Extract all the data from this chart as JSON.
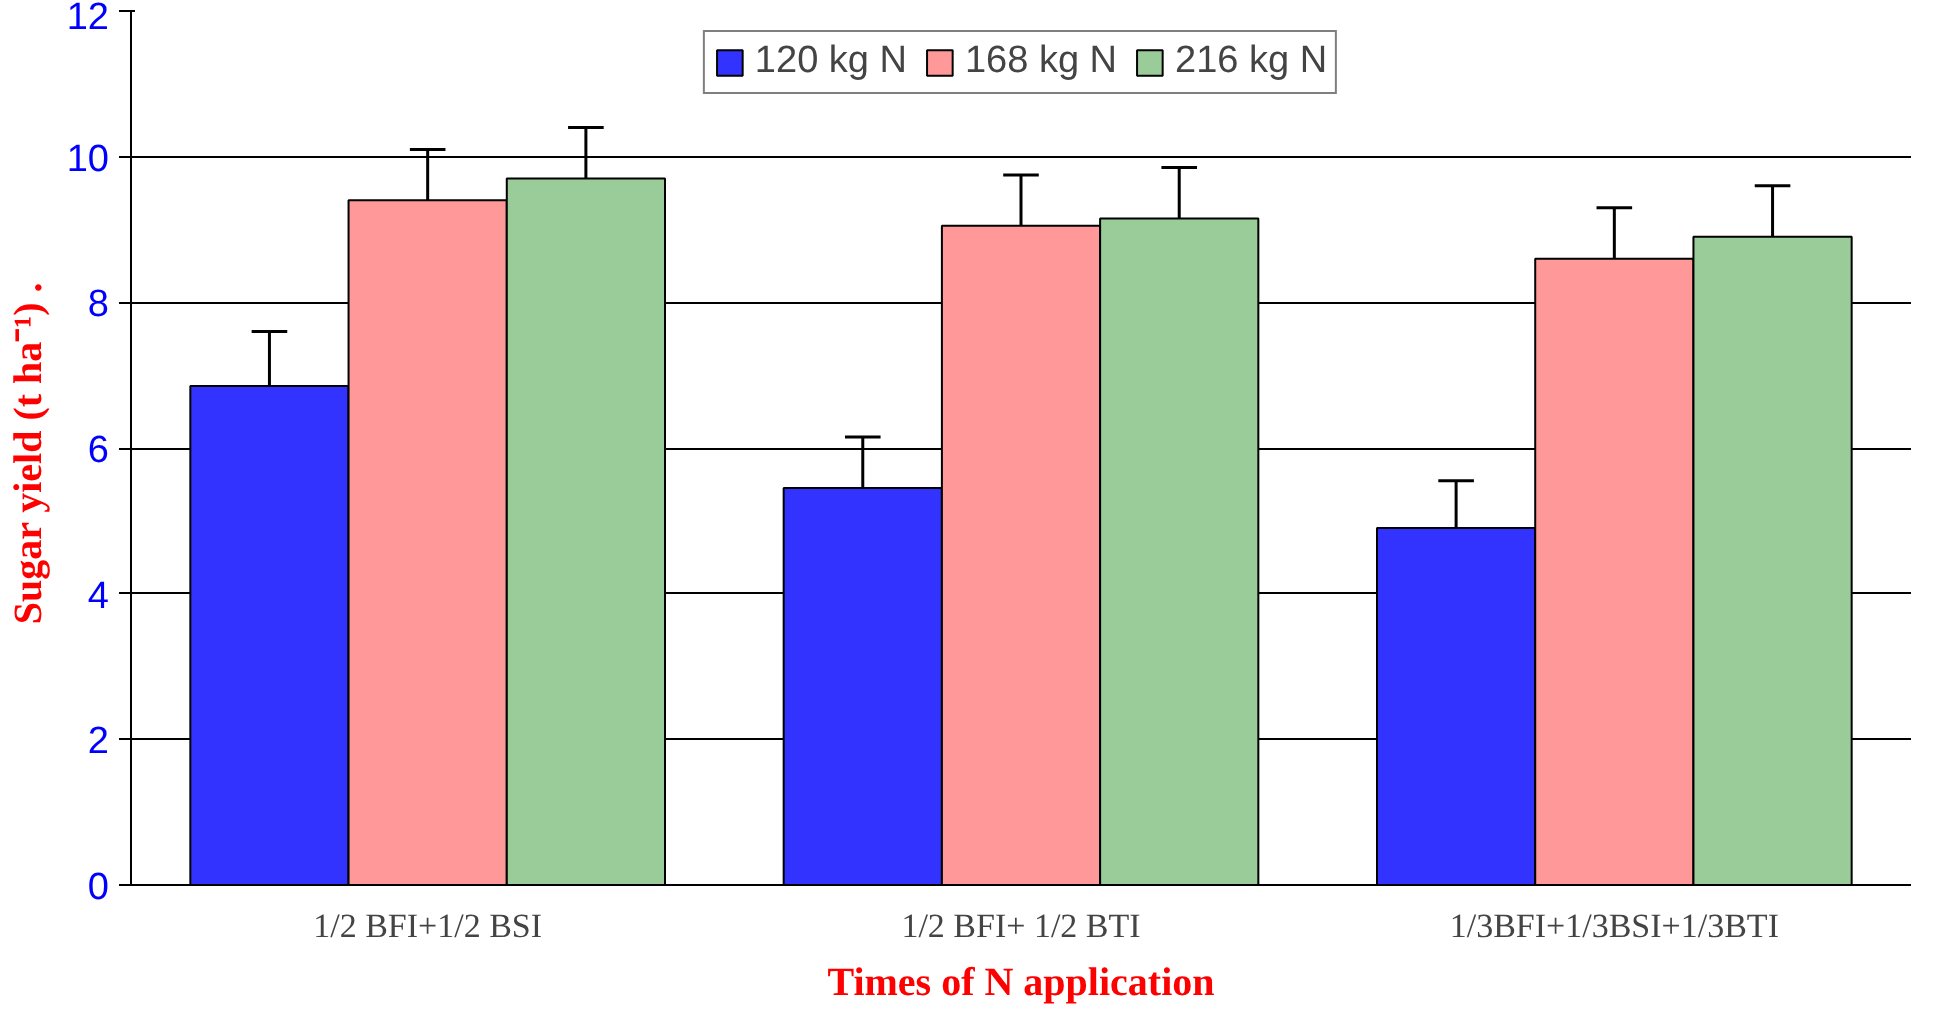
{
  "chart_data": {
    "type": "bar",
    "xlabel": "Times of N application",
    "ylabel": "Sugar yield  (t ha⁻¹) .",
    "categories": [
      "1/2 BFI+1/2 BSI",
      "1/2 BFI+ 1/2 BTI",
      "1/3BFI+1/3BSI+1/3BTI"
    ],
    "series": [
      {
        "name": "120 kg N",
        "color": "#3333ff",
        "values": [
          6.85,
          5.45,
          4.9
        ],
        "errors": [
          [
            6.85,
            7.6
          ],
          [
            5.45,
            6.15
          ],
          [
            4.9,
            5.55
          ]
        ]
      },
      {
        "name": "168 kg N",
        "color": "#ff9999",
        "values": [
          9.4,
          9.05,
          8.6
        ],
        "errors": [
          [
            9.4,
            10.1
          ],
          [
            9.05,
            9.75
          ],
          [
            8.6,
            9.3
          ]
        ]
      },
      {
        "name": "216 kg N",
        "color": "#99cc99",
        "values": [
          9.7,
          9.15,
          8.9
        ],
        "errors": [
          [
            9.7,
            10.4
          ],
          [
            9.15,
            9.85
          ],
          [
            8.9,
            9.6
          ]
        ]
      }
    ],
    "ylim": [
      0,
      12
    ],
    "yticks": [
      0,
      2,
      4,
      6,
      8,
      10,
      12
    ],
    "grid": "y",
    "legend": "top"
  }
}
